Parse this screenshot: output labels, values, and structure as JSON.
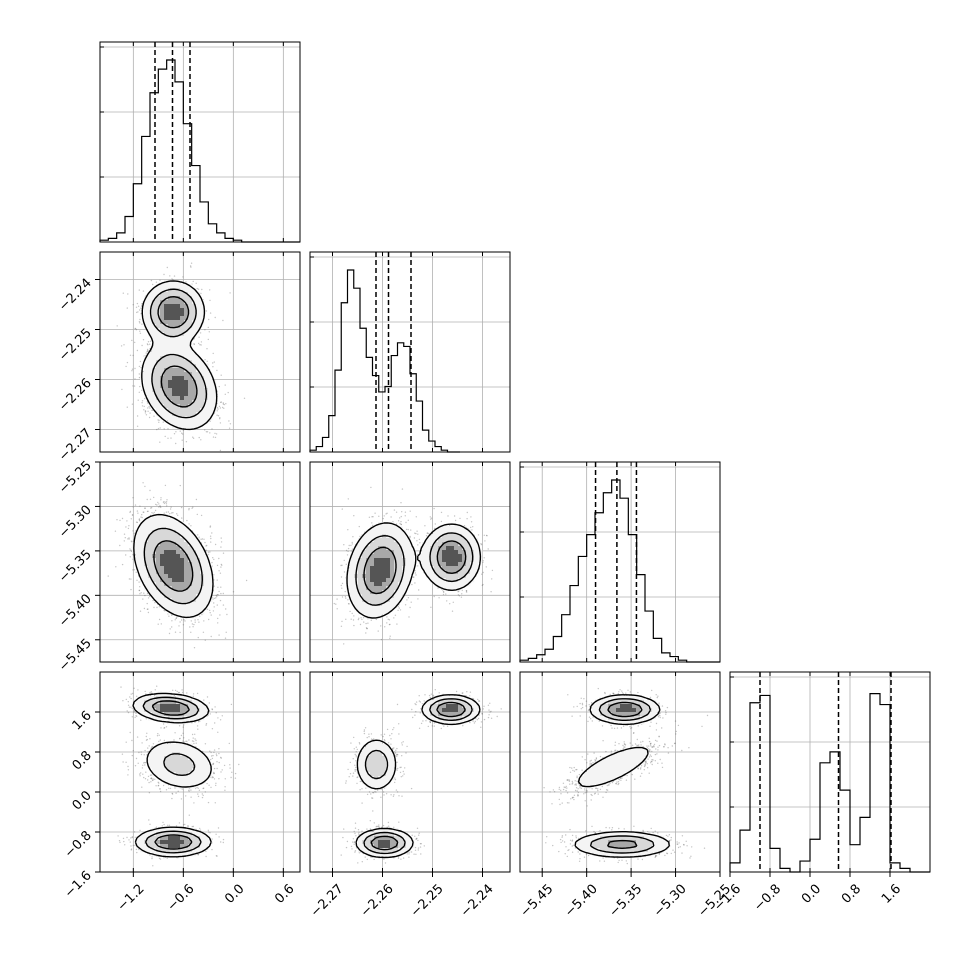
{
  "chart_data": {
    "type": "corner",
    "title": "",
    "parameters": [
      {
        "name": "",
        "range": [
          -1.6,
          0.8
        ],
        "ticks": [
          -1.2,
          -0.6,
          0.0,
          0.6
        ],
        "tick_labels": [
          "−1.2",
          "−0.6",
          "0.0",
          "0.6"
        ],
        "quantiles": [
          -0.94,
          -0.73,
          -0.52
        ],
        "hist": {
          "edges_start": -1.6,
          "bin_width": 0.1,
          "counts": [
            1,
            2,
            5,
            14,
            32,
            58,
            82,
            95,
            100,
            88,
            65,
            42,
            22,
            10,
            5,
            2,
            1,
            0,
            0,
            0,
            0,
            0,
            0,
            0
          ]
        }
      },
      {
        "name": "",
        "range": [
          -2.2745,
          -2.2345
        ],
        "ticks": [
          -2.27,
          -2.26,
          -2.25,
          -2.24
        ],
        "tick_labels": [
          "−2.27",
          "−2.26",
          "−2.25",
          "−2.24"
        ],
        "quantiles": [
          -2.2613,
          -2.2588,
          -2.2543
        ],
        "hist": {
          "edges_start": -2.2745,
          "bin_width": 0.00125,
          "counts": [
            1,
            3,
            8,
            20,
            45,
            82,
            100,
            90,
            68,
            52,
            42,
            33,
            36,
            53,
            60,
            58,
            43,
            28,
            12,
            6,
            3,
            1,
            0,
            0
          ]
        }
      },
      {
        "name": "",
        "range": [
          -5.475,
          -5.25
        ],
        "ticks": [
          -5.45,
          -5.4,
          -5.35,
          -5.3,
          -5.25
        ],
        "tick_labels": [
          "−5.45",
          "−5.40",
          "−5.35",
          "−5.30",
          "−5.25"
        ],
        "quantiles": [
          -5.39,
          -5.366,
          -5.344
        ],
        "hist": {
          "edges_start": -5.475,
          "bin_width": 0.009375,
          "counts": [
            1,
            2,
            4,
            7,
            14,
            26,
            42,
            58,
            70,
            82,
            93,
            100,
            90,
            70,
            48,
            28,
            13,
            5,
            3,
            1,
            0,
            0,
            0,
            0
          ]
        }
      },
      {
        "name": "",
        "range": [
          -1.6,
          2.4
        ],
        "ticks": [
          -1.6,
          -0.8,
          0.0,
          0.8,
          1.6
        ],
        "tick_labels": [
          "−1.6",
          "−0.8",
          "0.0",
          "0.8",
          "1.6"
        ],
        "quantiles": [
          -1.0,
          0.57,
          1.62
        ],
        "hist": {
          "edges_start": -1.6,
          "bin_width": 0.2,
          "counts": [
            5,
            23,
            93,
            97,
            13,
            2,
            0,
            6,
            18,
            60,
            66,
            45,
            15,
            30,
            98,
            92,
            5,
            2,
            0,
            0
          ]
        }
      }
    ],
    "contour_levels": 3,
    "note_axes": "bottom row shows x tick labels, left column (rows 2-4) shows y tick labels"
  }
}
